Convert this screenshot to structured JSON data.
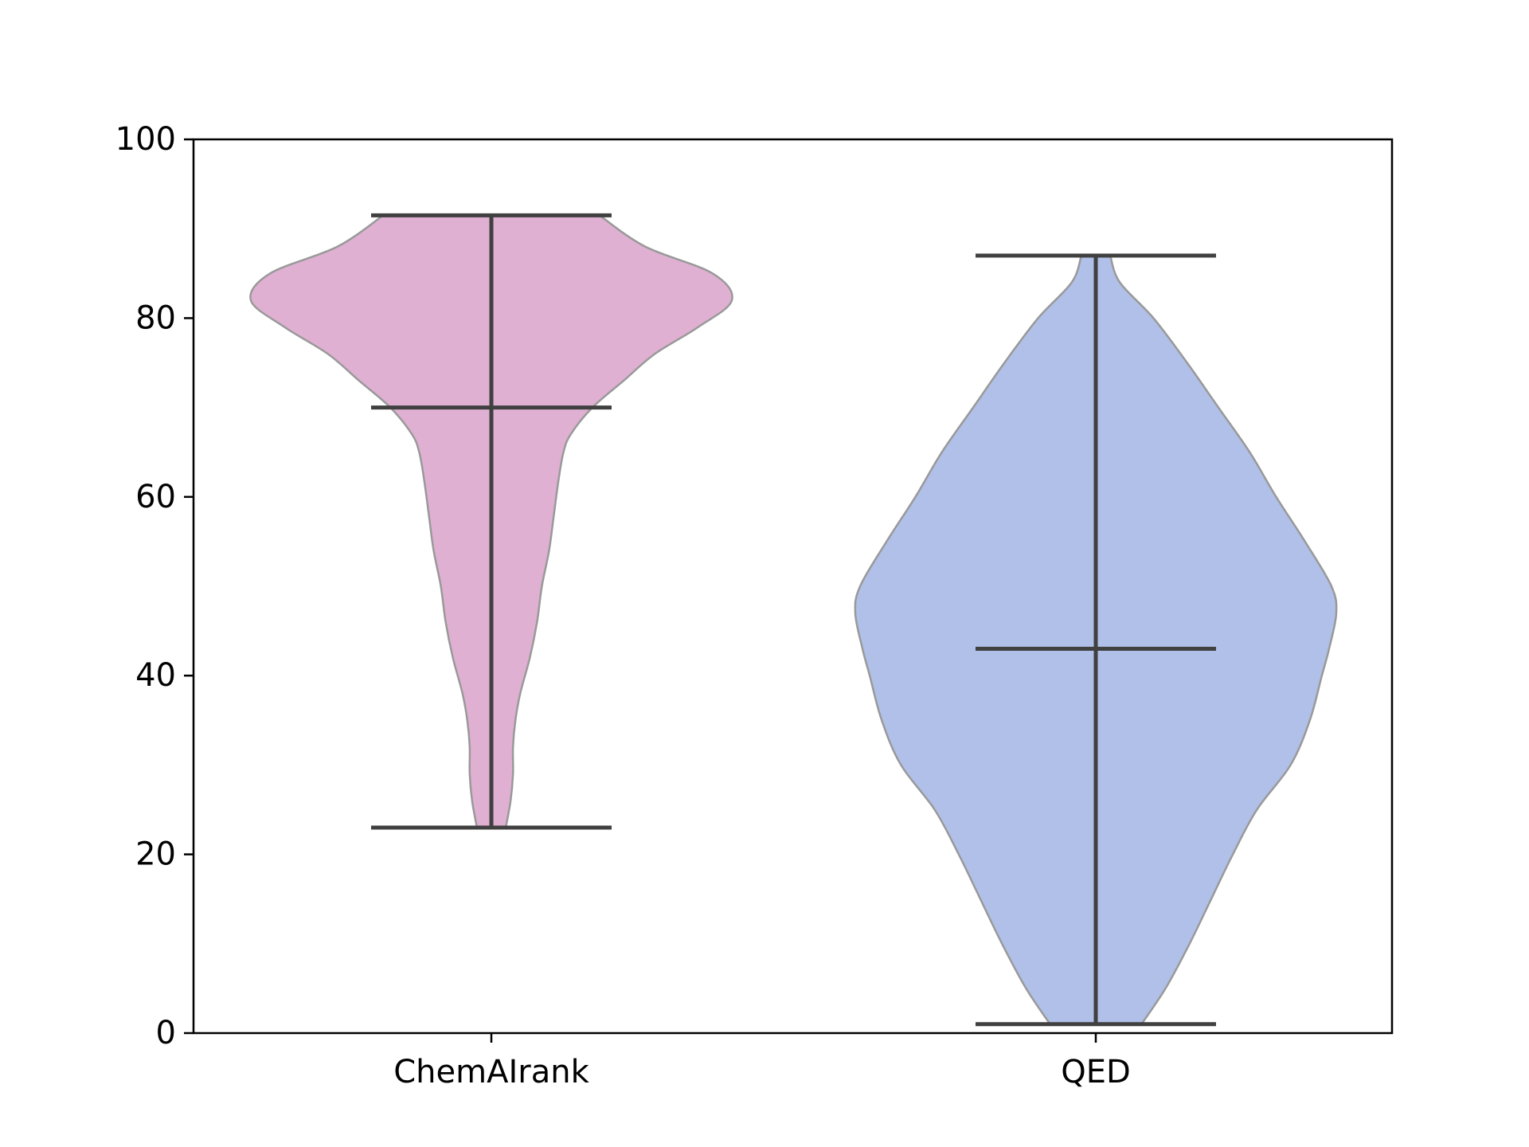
{
  "chart_data": {
    "type": "violin",
    "title": "",
    "xlabel": "",
    "ylabel": "",
    "ylim": [
      0,
      100
    ],
    "yticks": [
      "0",
      "20",
      "40",
      "60",
      "80",
      "100"
    ],
    "categories": [
      "ChemAIrank",
      "QED"
    ],
    "grid": false,
    "series": [
      {
        "category": "ChemAIrank",
        "color": "#e0b0d2",
        "min": 23,
        "max": 91.5,
        "mean": 70,
        "density": [
          [
            23,
            0.06
          ],
          [
            26,
            0.08
          ],
          [
            29,
            0.09
          ],
          [
            32,
            0.09
          ],
          [
            35,
            0.1
          ],
          [
            38,
            0.12
          ],
          [
            42,
            0.16
          ],
          [
            46,
            0.19
          ],
          [
            50,
            0.21
          ],
          [
            54,
            0.24
          ],
          [
            58,
            0.26
          ],
          [
            62,
            0.28
          ],
          [
            65,
            0.3
          ],
          [
            67,
            0.33
          ],
          [
            70,
            0.42
          ],
          [
            73,
            0.55
          ],
          [
            76,
            0.68
          ],
          [
            79,
            0.86
          ],
          [
            82,
            1.0
          ],
          [
            85,
            0.92
          ],
          [
            88,
            0.64
          ],
          [
            91.5,
            0.45
          ]
        ]
      },
      {
        "category": "QED",
        "color": "#b0c0e8",
        "min": 1,
        "max": 87,
        "mean": 43,
        "density": [
          [
            1,
            0.19
          ],
          [
            5,
            0.29
          ],
          [
            10,
            0.39
          ],
          [
            15,
            0.48
          ],
          [
            20,
            0.57
          ],
          [
            25,
            0.67
          ],
          [
            30,
            0.81
          ],
          [
            35,
            0.89
          ],
          [
            40,
            0.94
          ],
          [
            43,
            0.97
          ],
          [
            47,
            1.0
          ],
          [
            50,
            0.98
          ],
          [
            55,
            0.87
          ],
          [
            60,
            0.75
          ],
          [
            65,
            0.64
          ],
          [
            70,
            0.51
          ],
          [
            75,
            0.38
          ],
          [
            80,
            0.24
          ],
          [
            84,
            0.1
          ],
          [
            87,
            0.06
          ]
        ]
      }
    ]
  },
  "colors": {
    "line": "#404040",
    "outline": "#999999",
    "axis": "#000000"
  }
}
